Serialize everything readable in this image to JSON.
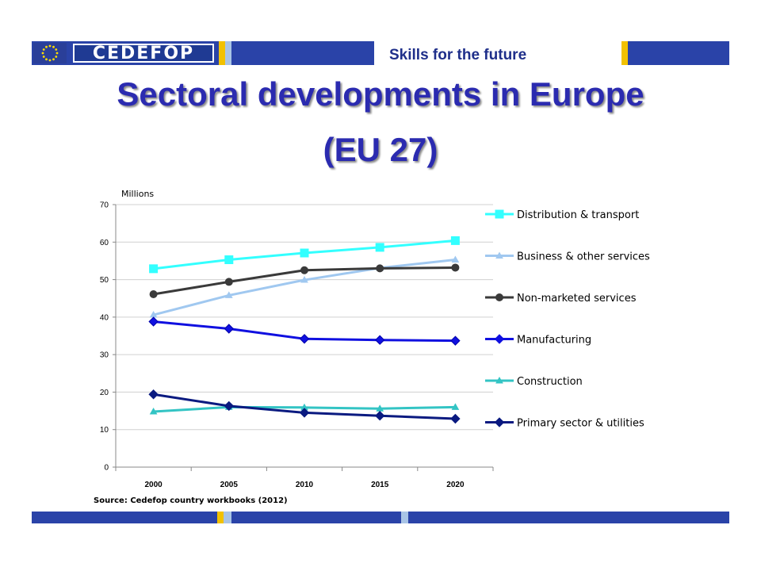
{
  "header": {
    "logo_text": "CEDEFOP",
    "tagline": "Skills for the future"
  },
  "title": {
    "line1": "Sectoral developments in Europe",
    "line2": "(EU 27)"
  },
  "colors": {
    "bar_blue": "#2a43a8",
    "bar_gold": "#f2c100",
    "bar_light": "#a9c4e6",
    "title": "#2b2bb0"
  },
  "chart_data": {
    "type": "line",
    "ylabel": "Millions",
    "ylim": [
      0,
      70
    ],
    "yticks": [
      "0",
      "10",
      "20",
      "30",
      "40",
      "50",
      "60",
      "70"
    ],
    "categories": [
      "2000",
      "2005",
      "2010",
      "2015",
      "2020"
    ],
    "grid": "horizontal",
    "legend_position": "right",
    "source": "Source: Cedefop country workbooks (2012)",
    "series": [
      {
        "name": "Distribution & transport",
        "values": [
          52.9,
          55.3,
          57.1,
          58.6,
          60.4
        ],
        "color": "#33ffff",
        "marker": "square"
      },
      {
        "name": "Business & other services",
        "values": [
          40.6,
          45.8,
          49.9,
          53.1,
          55.3
        ],
        "color": "#a0c8f0",
        "marker": "triangle"
      },
      {
        "name": "Non-marketed services",
        "values": [
          46.1,
          49.4,
          52.5,
          53.0,
          53.2
        ],
        "color": "#3a3a3a",
        "marker": "circle"
      },
      {
        "name": "Manufacturing",
        "values": [
          38.8,
          36.9,
          34.2,
          33.9,
          33.7
        ],
        "color": "#1010e0",
        "marker": "diamond"
      },
      {
        "name": "Construction",
        "values": [
          14.8,
          16.0,
          15.9,
          15.6,
          16.0
        ],
        "color": "#33c4c4",
        "marker": "triangle"
      },
      {
        "name": "Primary sector & utilities",
        "values": [
          19.4,
          16.3,
          14.5,
          13.7,
          12.9
        ],
        "color": "#0a1a80",
        "marker": "diamond"
      }
    ]
  }
}
